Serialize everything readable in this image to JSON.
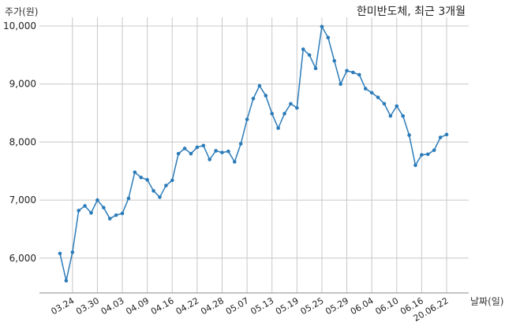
{
  "chart_data": {
    "type": "line",
    "title": "한미반도체, 최근 3개월",
    "ylabel": "주가(원)",
    "xlabel": "날짜(일)",
    "ylim": [
      5400,
      10150
    ],
    "yticks": [
      6000,
      7000,
      8000,
      9000,
      10000
    ],
    "ytick_labels": [
      "6,000",
      "7,000",
      "8,000",
      "9,000",
      "10,000"
    ],
    "grid": true,
    "series_color": "#2b7bb9",
    "x_tick_labels": [
      "03.24",
      "03.30",
      "04.03",
      "04.09",
      "04.16",
      "04.22",
      "04.28",
      "05.07",
      "05.13",
      "05.19",
      "05.25",
      "05.29",
      "06.04",
      "06.10",
      "06.16",
      "20.06.22"
    ],
    "x_tick_indices": [
      2,
      6,
      10,
      14,
      18,
      22,
      26,
      30,
      34,
      38,
      42,
      46,
      50,
      54,
      58,
      62
    ],
    "series": [
      {
        "values": [
          6080,
          5610,
          6100,
          6820,
          6900,
          6780,
          7000,
          6870,
          6680,
          6740,
          6770,
          7030,
          7480,
          7390,
          7350,
          7160,
          7050,
          7250,
          7340,
          7800,
          7890,
          7800,
          7910,
          7940,
          7700,
          7850,
          7820,
          7840,
          7660,
          7970,
          8390,
          8750,
          8970,
          8800,
          8490,
          8240,
          8490,
          8660,
          8590,
          9600,
          9500,
          9270,
          9990,
          9800,
          9400,
          9000,
          9230,
          9200,
          9160,
          8920,
          8850,
          8770,
          8660,
          8450,
          8620,
          8450,
          8120,
          7600,
          7780,
          7790,
          7860,
          8080,
          8130
        ]
      }
    ]
  }
}
